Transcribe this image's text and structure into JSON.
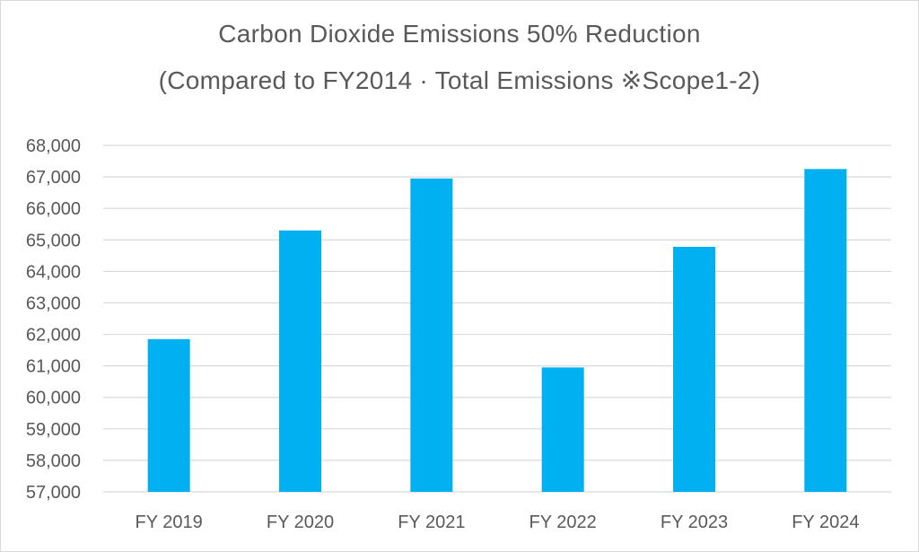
{
  "chart_data": {
    "type": "bar",
    "title": "Carbon Dioxide Emissions 50% Reduction",
    "subtitle": "(Compared to FY2014 · Total Emissions ※Scope1-2)",
    "xlabel": "",
    "ylabel": "",
    "categories": [
      "FY 2019",
      "FY 2020",
      "FY 2021",
      "FY 2022",
      "FY 2023",
      "FY 2024"
    ],
    "values": [
      61850,
      65300,
      66950,
      60950,
      64780,
      67250
    ],
    "ylim": [
      57000,
      68000
    ],
    "yticks": [
      57000,
      58000,
      59000,
      60000,
      61000,
      62000,
      63000,
      64000,
      65000,
      66000,
      67000,
      68000
    ],
    "ytick_labels": [
      "57,000",
      "58,000",
      "59,000",
      "60,000",
      "61,000",
      "62,000",
      "63,000",
      "64,000",
      "65,000",
      "66,000",
      "67,000",
      "68,000"
    ],
    "grid": true,
    "legend": "none",
    "bar_color": "#00b0f0",
    "grid_color": "#d9d9d9",
    "text_color": "#595959"
  }
}
